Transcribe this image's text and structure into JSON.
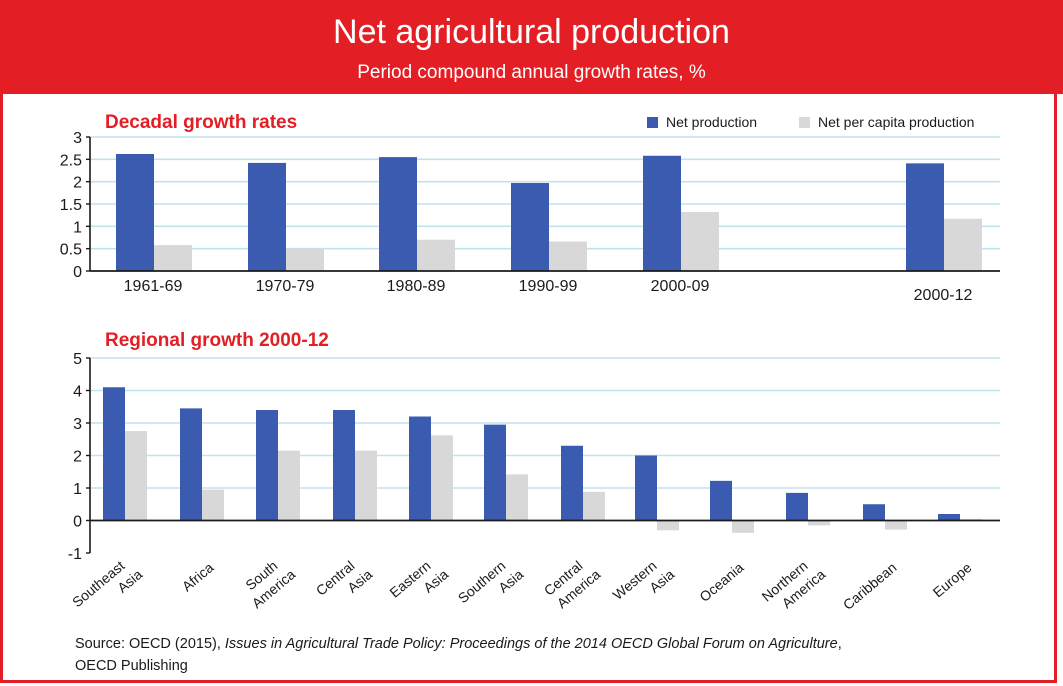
{
  "header": {
    "title": "Net agricultural production",
    "subtitle": "Period compound annual growth rates, %"
  },
  "colors": {
    "net": "#3a5bb0",
    "percap": "#d8d8d8",
    "accent": "#e31e24",
    "grid": "#bfe3ef"
  },
  "legend": {
    "net_label": "Net production",
    "percap_label": "Net per capita production",
    "placement": "top-right"
  },
  "chart_data": [
    {
      "type": "bar",
      "title": "Decadal growth rates",
      "ylim": [
        0,
        3
      ],
      "yticks": [
        "0",
        "0.5",
        "1",
        "1.5",
        "2",
        "2.5",
        "3"
      ],
      "grid": true,
      "categories": [
        "1961-69",
        "1970-79",
        "1980-89",
        "1990-99",
        "2000-09",
        "2000-12"
      ],
      "series": [
        {
          "name": "Net production",
          "values": [
            2.62,
            2.42,
            2.55,
            1.97,
            2.58,
            2.41
          ]
        },
        {
          "name": "Net per capita production",
          "values": [
            0.58,
            0.5,
            0.7,
            0.66,
            1.32,
            1.17
          ]
        }
      ]
    },
    {
      "type": "bar",
      "title": "Regional growth 2000-12",
      "ylim": [
        -1,
        5
      ],
      "yticks": [
        "-1",
        "0",
        "1",
        "2",
        "3",
        "4",
        "5"
      ],
      "grid": true,
      "categories": [
        [
          "Southeast",
          "Asia"
        ],
        [
          "Africa"
        ],
        [
          "South",
          "America"
        ],
        [
          "Central",
          "Asia"
        ],
        [
          "Eastern",
          "Asia"
        ],
        [
          "Southern",
          "Asia"
        ],
        [
          "Central",
          "America"
        ],
        [
          "Western",
          "Asia"
        ],
        [
          "Oceania"
        ],
        [
          "Northern",
          "America"
        ],
        [
          "Caribbean"
        ],
        [
          "Europe"
        ]
      ],
      "series": [
        {
          "name": "Net production",
          "values": [
            4.1,
            3.45,
            3.4,
            3.4,
            3.2,
            2.95,
            2.3,
            2.0,
            1.22,
            0.85,
            0.5,
            0.2
          ]
        },
        {
          "name": "Net per capita production",
          "values": [
            2.75,
            0.95,
            2.15,
            2.15,
            2.62,
            1.42,
            0.88,
            -0.3,
            -0.38,
            -0.15,
            -0.28,
            0.05
          ]
        }
      ]
    }
  ],
  "source": {
    "prefix": "Source:",
    "citation": " OECD (2015), ",
    "title_italic": "Issues in Agricultural Trade Policy: Proceedings of the 2014 OECD Global Forum on Agriculture",
    "suffix": ",",
    "publisher": "OECD Publishing"
  }
}
